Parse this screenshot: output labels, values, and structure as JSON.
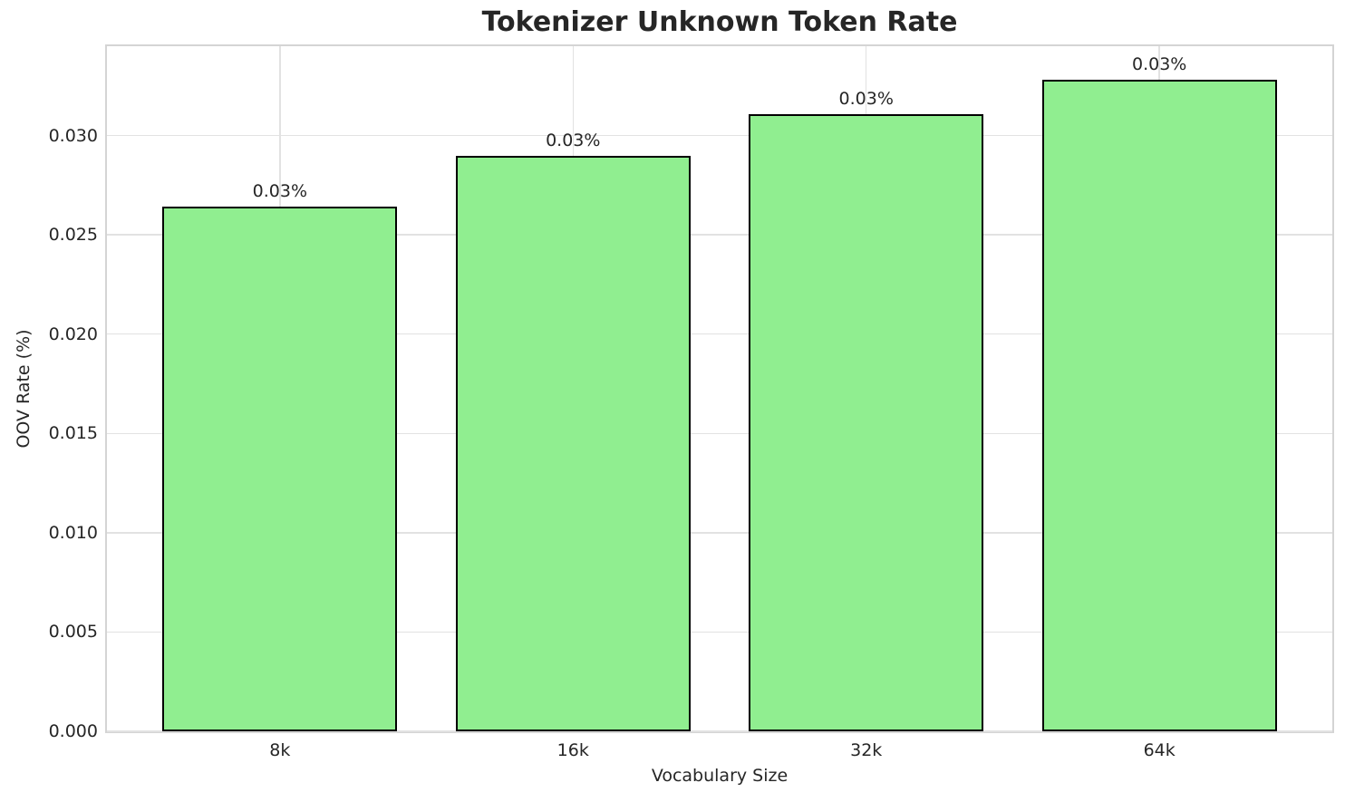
{
  "chart_data": {
    "type": "bar",
    "title": "Tokenizer Unknown Token Rate",
    "xlabel": "Vocabulary Size",
    "ylabel": "OOV Rate (%)",
    "categories": [
      "8k",
      "16k",
      "32k",
      "64k"
    ],
    "values": [
      0.0264,
      0.029,
      0.0311,
      0.0328
    ],
    "bar_labels": [
      "0.03%",
      "0.03%",
      "0.03%",
      "0.03%"
    ],
    "xlim": [
      -0.59,
      3.59
    ],
    "ylim": [
      0,
      0.0345
    ],
    "bar_width": 0.8,
    "yticks": [
      0,
      0.005,
      0.01,
      0.015,
      0.02,
      0.025,
      0.03
    ],
    "ytick_labels": [
      "0.000",
      "0.005",
      "0.010",
      "0.015",
      "0.020",
      "0.025",
      "0.030"
    ],
    "grid": true,
    "legend": false,
    "colors": {
      "bar_fill": "#90EE90",
      "bar_edge": "#000000",
      "grid": "#e2e2e2",
      "spine": "#d4d4d4",
      "text": "#262626",
      "background": "#ffffff"
    }
  }
}
